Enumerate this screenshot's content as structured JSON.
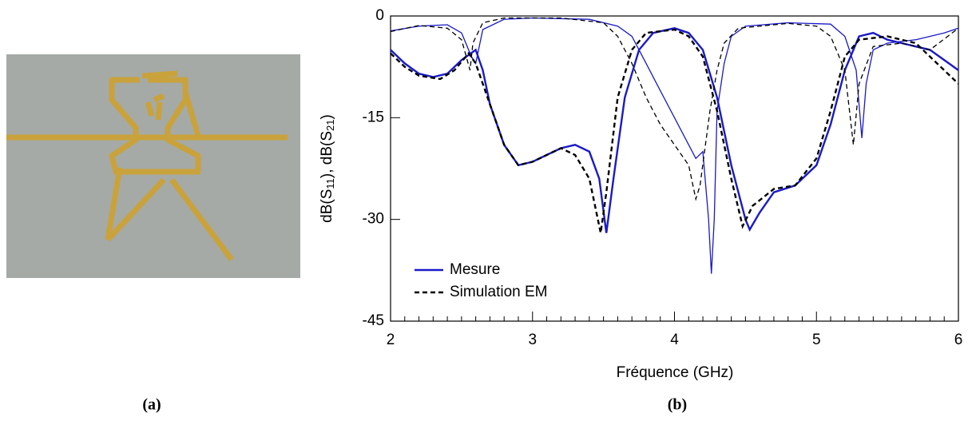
{
  "panel_a_label": "(a)",
  "chart_data": {
    "type": "line",
    "panel_label": "(b)",
    "xlabel": "Fréquence (GHz)",
    "ylabel": [
      "dB(S",
      "11",
      "), dB(S",
      "21",
      ")"
    ],
    "xlim": [
      2,
      6
    ],
    "xticks": [
      2,
      3,
      4,
      5,
      6
    ],
    "ylim": [
      -45,
      0
    ],
    "yticks": [
      0,
      -15,
      -30,
      -45
    ],
    "legend": "lower left",
    "series": [
      {
        "name": "Mesure",
        "color": "#1a1ac8",
        "dash": false,
        "curves": [
          {
            "x": [
              2.0,
              2.1,
              2.2,
              2.3,
              2.4,
              2.5,
              2.6,
              2.65,
              2.7,
              2.8,
              2.9,
              3.0,
              3.1,
              3.2,
              3.3,
              3.4,
              3.47,
              3.52,
              3.57,
              3.65,
              3.75,
              3.85,
              4.0,
              4.1,
              4.2,
              4.3,
              4.4,
              4.5,
              4.53,
              4.6,
              4.7,
              4.85,
              5.0,
              5.1,
              5.2,
              5.3,
              5.4,
              5.5,
              5.6,
              5.8,
              6.0
            ],
            "y": [
              -5,
              -7,
              -8.5,
              -9,
              -8.5,
              -6.5,
              -5,
              -8,
              -13,
              -19,
              -22,
              -21.5,
              -20.5,
              -19.5,
              -19,
              -20,
              -24,
              -32,
              -24,
              -12,
              -5,
              -2.5,
              -1.8,
              -2.5,
              -5,
              -12,
              -22,
              -30,
              -31.5,
              -29,
              -26,
              -25,
              -22,
              -16,
              -8,
              -3,
              -2.5,
              -3.5,
              -4,
              -5,
              -8
            ]
          },
          {
            "x": [
              2.0,
              2.2,
              2.4,
              2.5,
              2.57,
              2.6,
              2.65,
              2.8,
              3.0,
              3.4,
              3.6,
              3.7,
              3.8,
              3.9,
              4.0,
              4.1,
              4.15,
              4.2,
              4.24,
              4.26,
              4.28,
              4.3,
              4.35,
              4.4,
              4.5,
              4.8,
              5.1,
              5.2,
              5.28,
              5.32,
              5.35,
              5.4,
              5.5,
              5.7,
              5.9,
              6.0
            ],
            "y": [
              -2.2,
              -1.5,
              -1.3,
              -2.5,
              -6,
              -7,
              -2,
              -0.5,
              -0.3,
              -0.5,
              -1.5,
              -3,
              -7,
              -11,
              -15,
              -19,
              -21,
              -20,
              -30,
              -38,
              -30,
              -14,
              -7,
              -3,
              -1.5,
              -1,
              -1.2,
              -3,
              -8,
              -18,
              -10,
              -5,
              -4,
              -3.5,
              -2.5,
              -1.8
            ]
          }
        ]
      },
      {
        "name": "Simulation EM",
        "color": "#000000",
        "dash": true,
        "curves": [
          {
            "x": [
              2.0,
              2.1,
              2.2,
              2.35,
              2.45,
              2.55,
              2.6,
              2.7,
              2.8,
              2.9,
              3.0,
              3.2,
              3.3,
              3.4,
              3.48,
              3.52,
              3.6,
              3.7,
              3.8,
              4.0,
              4.1,
              4.2,
              4.3,
              4.4,
              4.48,
              4.55,
              4.7,
              4.85,
              5.0,
              5.1,
              5.2,
              5.3,
              5.5,
              5.7,
              6.0
            ],
            "y": [
              -5.5,
              -7.5,
              -8.8,
              -9.3,
              -8,
              -5.5,
              -7,
              -13,
              -19,
              -22,
              -21.5,
              -19.5,
              -20.5,
              -24,
              -32,
              -26,
              -12,
              -5,
              -2.5,
              -2,
              -3,
              -6,
              -14,
              -24,
              -31,
              -28,
              -25.5,
              -25,
              -21,
              -14,
              -6,
              -3.5,
              -3,
              -4,
              -10
            ]
          },
          {
            "x": [
              2.0,
              2.2,
              2.4,
              2.5,
              2.56,
              2.58,
              2.65,
              2.8,
              3.2,
              3.5,
              3.6,
              3.7,
              3.8,
              3.9,
              4.0,
              4.1,
              4.15,
              4.18,
              4.25,
              4.3,
              4.35,
              4.45,
              4.8,
              5.0,
              5.1,
              5.2,
              5.26,
              5.3,
              5.4,
              5.6,
              5.8,
              6.0
            ],
            "y": [
              -2.3,
              -1.4,
              -1.8,
              -3.5,
              -8,
              -4,
              -1,
              -0.3,
              -0.3,
              -1,
              -3,
              -7,
              -12,
              -16,
              -19,
              -22,
              -27,
              -25,
              -14,
              -8,
              -4,
              -1.8,
              -1.1,
              -1.5,
              -3,
              -8,
              -19,
              -10,
              -4.5,
              -4,
              -5,
              -1.8
            ]
          }
        ]
      }
    ]
  }
}
